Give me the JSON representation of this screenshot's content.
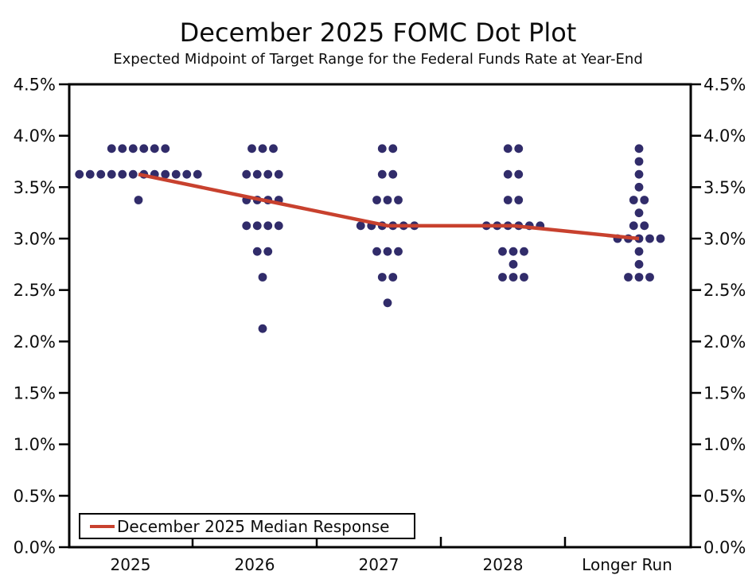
{
  "header": {
    "title": "December 2025 FOMC Dot Plot",
    "subtitle": "Expected Midpoint of Target Range for the Federal Funds Rate at Year-End"
  },
  "colors": {
    "dot": "#312c6a",
    "median_line": "#c8412e",
    "axis": "#000000",
    "text": "#0d0d0d",
    "background": "#ffffff"
  },
  "chart_data": {
    "type": "scatter",
    "title": "December 2025 FOMC Dot Plot",
    "subtitle": "Expected Midpoint of Target Range for the Federal Funds Rate at Year-End",
    "categories": [
      "2025",
      "2026",
      "2027",
      "2028",
      "Longer Run"
    ],
    "ylim": [
      0,
      4.5
    ],
    "y_tick_step": 0.5,
    "y_tick_labels": [
      "0.0%",
      "0.5%",
      "1.0%",
      "1.5%",
      "2.0%",
      "2.5%",
      "3.0%",
      "3.5%",
      "4.0%",
      "4.5%"
    ],
    "grid": false,
    "legend_position": "bottom-left",
    "dot_distributions": [
      {
        "category": "2025",
        "levels": [
          {
            "rate": 3.875,
            "count": 6
          },
          {
            "rate": 3.625,
            "count": 12
          },
          {
            "rate": 3.375,
            "count": 1
          }
        ]
      },
      {
        "category": "2026",
        "levels": [
          {
            "rate": 3.875,
            "count": 3
          },
          {
            "rate": 3.625,
            "count": 4
          },
          {
            "rate": 3.375,
            "count": 4
          },
          {
            "rate": 3.125,
            "count": 4
          },
          {
            "rate": 2.875,
            "count": 2
          },
          {
            "rate": 2.625,
            "count": 1
          },
          {
            "rate": 2.125,
            "count": 1
          }
        ]
      },
      {
        "category": "2027",
        "levels": [
          {
            "rate": 3.875,
            "count": 2
          },
          {
            "rate": 3.625,
            "count": 2
          },
          {
            "rate": 3.375,
            "count": 3
          },
          {
            "rate": 3.125,
            "count": 6
          },
          {
            "rate": 2.875,
            "count": 3
          },
          {
            "rate": 2.625,
            "count": 2
          },
          {
            "rate": 2.375,
            "count": 1
          }
        ]
      },
      {
        "category": "2028",
        "levels": [
          {
            "rate": 3.875,
            "count": 2
          },
          {
            "rate": 3.625,
            "count": 2
          },
          {
            "rate": 3.375,
            "count": 2
          },
          {
            "rate": 3.125,
            "count": 6
          },
          {
            "rate": 2.875,
            "count": 3
          },
          {
            "rate": 2.75,
            "count": 1
          },
          {
            "rate": 2.625,
            "count": 3
          }
        ]
      },
      {
        "category": "Longer Run",
        "levels": [
          {
            "rate": 3.875,
            "count": 1
          },
          {
            "rate": 3.75,
            "count": 1
          },
          {
            "rate": 3.625,
            "count": 1
          },
          {
            "rate": 3.5,
            "count": 1
          },
          {
            "rate": 3.375,
            "count": 2
          },
          {
            "rate": 3.25,
            "count": 1
          },
          {
            "rate": 3.125,
            "count": 2
          },
          {
            "rate": 3.0,
            "count": 5
          },
          {
            "rate": 2.875,
            "count": 1
          },
          {
            "rate": 2.75,
            "count": 1
          },
          {
            "rate": 2.625,
            "count": 3
          }
        ]
      }
    ],
    "median_series": {
      "name": "December 2025 Median Response",
      "values": [
        3.625,
        3.375,
        3.125,
        3.125,
        3.0
      ]
    }
  }
}
